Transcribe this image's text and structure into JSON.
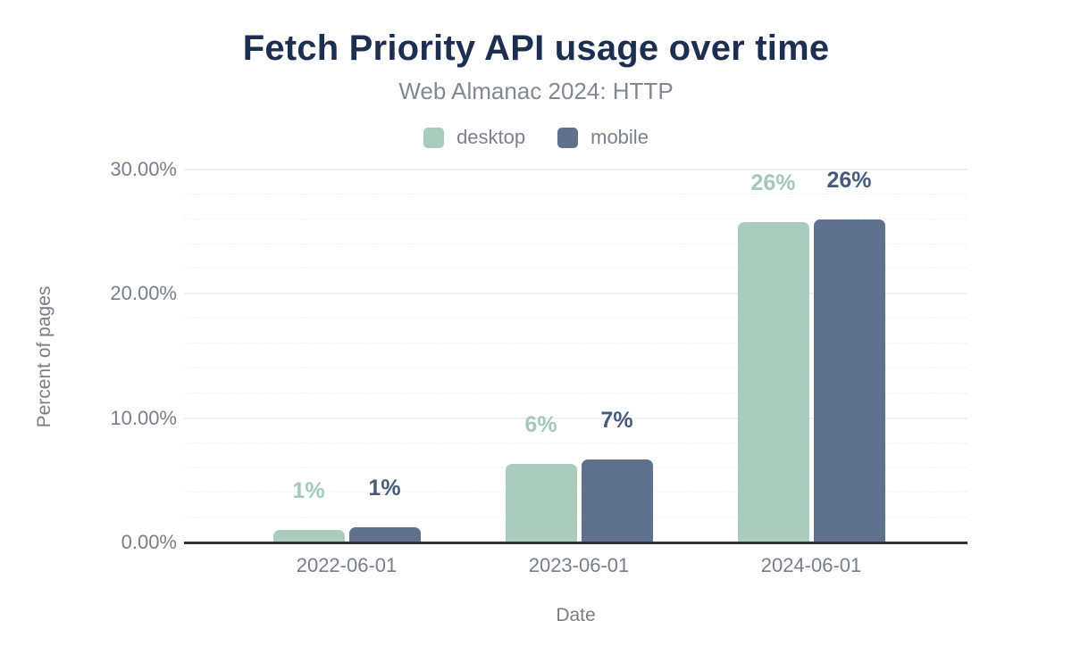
{
  "figure": {
    "title": "Fetch Priority API usage over time",
    "subtitle": "Web Almanac 2024: HTTP"
  },
  "chart_data": {
    "type": "bar",
    "title": "Fetch Priority API usage over time",
    "subtitle": "Web Almanac 2024: HTTP",
    "categories": [
      "2022-06-01",
      "2023-06-01",
      "2024-06-01"
    ],
    "series": [
      {
        "name": "desktop",
        "color": "#a9ccbc",
        "label_color": "#a4c9b8",
        "values": [
          1.0,
          6.3,
          25.8
        ],
        "labels": [
          "1%",
          "6%",
          "26%"
        ]
      },
      {
        "name": "mobile",
        "color": "#5f718c",
        "label_color": "#485a7c",
        "values": [
          1.2,
          6.7,
          26.0
        ],
        "labels": [
          "1%",
          "7%",
          "26%"
        ]
      }
    ],
    "xlabel": "Date",
    "ylabel": "Percent of pages",
    "ylim": [
      0,
      30
    ],
    "yticks": [
      {
        "value": 0,
        "label": "0.00%"
      },
      {
        "value": 10,
        "label": "10.00%"
      },
      {
        "value": 20,
        "label": "20.00%"
      },
      {
        "value": 30,
        "label": "30.00%"
      }
    ],
    "minor_grid_step": 2,
    "grid": true,
    "legend_position": "top"
  }
}
